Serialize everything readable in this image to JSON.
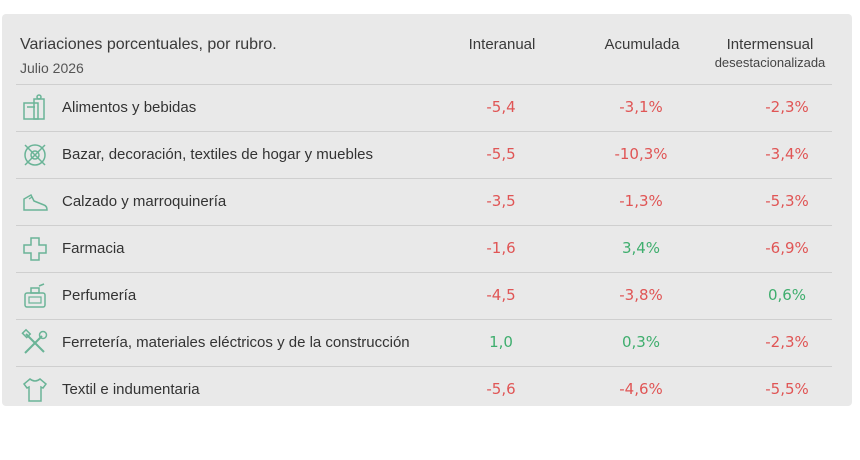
{
  "header": {
    "title": "Variaciones porcentuales, por rubro.",
    "subtitle": "Julio 2026",
    "col_interanual": "Interanual",
    "col_acumulada": "Acumulada",
    "col_intermensual": "Intermensual",
    "col_intermensual_sub": "desestacionalizada"
  },
  "colors": {
    "negative": "#e05555",
    "positive": "#3fae6e",
    "icon": "#6ab497"
  },
  "chart_data": {
    "type": "table",
    "title": "Variaciones porcentuales, por rubro.",
    "subtitle": "Julio 2026",
    "columns": [
      "Interanual",
      "Acumulada",
      "Intermensual desestacionalizada"
    ],
    "rows": [
      {
        "label": "Alimentos y bebidas",
        "icon": "grocery-bag-icon",
        "interanual": "-5,4",
        "acumulada": "-3,1%",
        "intermensual": "-2,3%"
      },
      {
        "label": "Bazar, decoración, textiles de hogar y muebles",
        "icon": "bazar-icon",
        "interanual": "-5,5",
        "acumulada": "-10,3%",
        "intermensual": "-3,4%"
      },
      {
        "label": "Calzado y marroquinería",
        "icon": "shoe-icon",
        "interanual": "-3,5",
        "acumulada": "-1,3%",
        "intermensual": "-5,3%"
      },
      {
        "label": "Farmacia",
        "icon": "pharmacy-cross-icon",
        "interanual": "-1,6",
        "acumulada": "3,4%",
        "intermensual": "-6,9%"
      },
      {
        "label": "Perfumería",
        "icon": "perfume-icon",
        "interanual": "-4,5",
        "acumulada": "-3,8%",
        "intermensual": "0,6%"
      },
      {
        "label": "Ferretería, materiales eléctricos y de la construcción",
        "icon": "tools-icon",
        "interanual": "1,0",
        "acumulada": "0,3%",
        "intermensual": "-2,3%"
      },
      {
        "label": "Textil e indumentaria",
        "icon": "tshirt-icon",
        "interanual": "-5,6",
        "acumulada": "-4,6%",
        "intermensual": "-5,5%"
      }
    ]
  }
}
